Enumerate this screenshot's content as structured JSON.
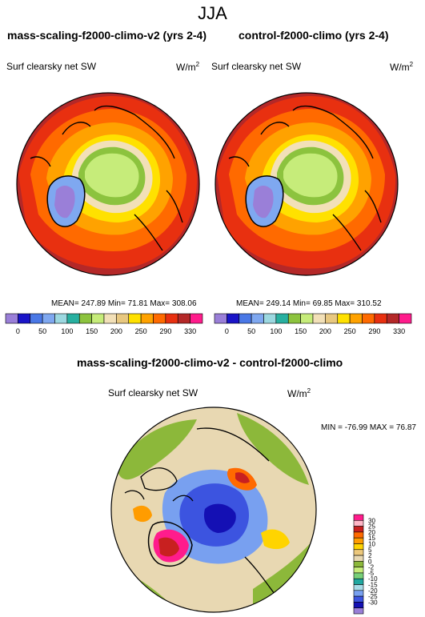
{
  "season": "JJA",
  "panels": [
    {
      "title": "mass-scaling-f2000-climo-v2 (yrs 2-4)",
      "variable": "Surf clearsky net SW",
      "units_base": "W/m",
      "units_exp": "2",
      "stats": "MEAN= 247.89  Min=  71.81  Max= 308.06"
    },
    {
      "title": "control-f2000-climo (yrs 2-4)",
      "variable": "Surf clearsky net SW",
      "units_base": "W/m",
      "units_exp": "2",
      "stats": "MEAN= 249.14  Min=  69.85  Max= 310.52"
    }
  ],
  "diff": {
    "title": "mass-scaling-f2000-climo-v2 - control-f2000-climo",
    "variable": "Surf clearsky net SW",
    "units_base": "W/m",
    "units_exp": "2",
    "stats": "MIN = -76.99 MAX =  76.87"
  },
  "colorbar_top": {
    "labels": [
      "0",
      "50",
      "100",
      "150",
      "200",
      "250",
      "290",
      "330"
    ],
    "colors": [
      "#9a7fd8",
      "#1a14c8",
      "#4a78e6",
      "#7fa8f0",
      "#9cd8e0",
      "#28b0a0",
      "#8cc33e",
      "#c6ec7a",
      "#f2e0b8",
      "#e8c880",
      "#ffe100",
      "#ffa200",
      "#ff6a00",
      "#e83010",
      "#b42828",
      "#ff1c8c"
    ]
  },
  "colorbar_diff": {
    "labels": [
      "30",
      "25",
      "20",
      "15",
      "10",
      "5",
      "2",
      "0",
      "-2",
      "-5",
      "-10",
      "-15",
      "-20",
      "-25",
      "-30"
    ],
    "colors": [
      "#ff1c8c",
      "#ffb6c6",
      "#c82020",
      "#ff6a00",
      "#ff9c00",
      "#ffd400",
      "#ecc87c",
      "#e8d8b2",
      "#8cb83a",
      "#c6ec7a",
      "#78d078",
      "#20a8a0",
      "#a8dce8",
      "#78a0f0",
      "#3c54e0",
      "#1410b4",
      "#9a7fd8"
    ]
  }
}
